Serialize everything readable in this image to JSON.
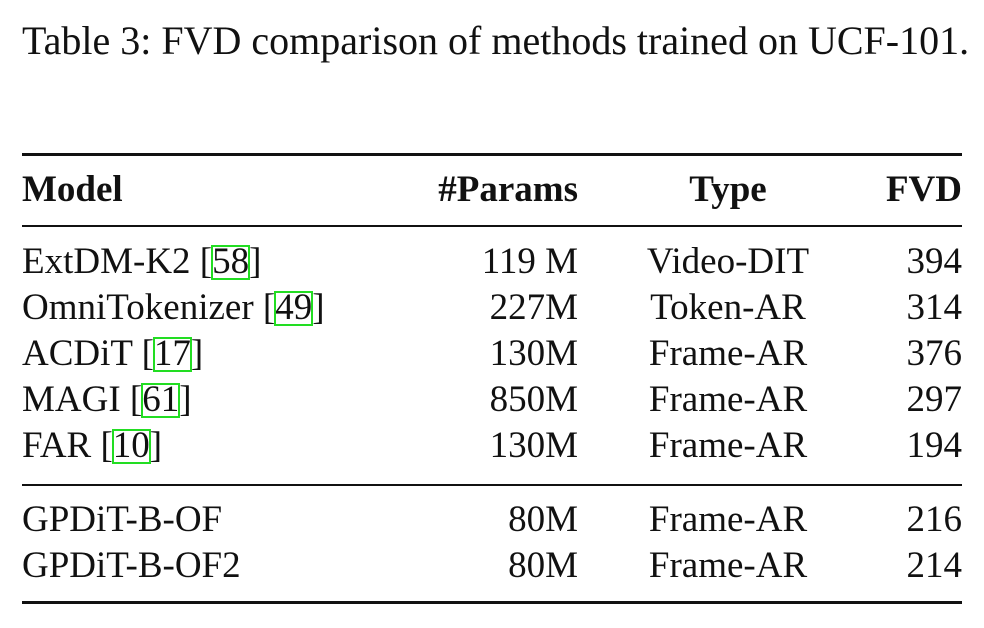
{
  "caption": "Table 3: FVD comparison of methods trained on UCF-101.",
  "table": {
    "header": [
      "Model",
      "#Params",
      "Type",
      "FVD"
    ],
    "groups": [
      [
        [
          "ExtDM-K2 [58]",
          "119 M",
          "Video-DIT",
          "394"
        ],
        [
          "OmniTokenizer [49]",
          "227M",
          "Token-AR",
          "314"
        ],
        [
          "ACDiT [17]",
          "130M",
          "Frame-AR",
          "376"
        ],
        [
          "MAGI [61]",
          "850M",
          "Frame-AR",
          "297"
        ],
        [
          "FAR [10]",
          "130M",
          "Frame-AR",
          "194"
        ]
      ],
      [
        [
          "GPDiT-B-OF",
          "80M",
          "Frame-AR",
          "216"
        ],
        [
          "GPDiT-B-OF2",
          "80M",
          "Frame-AR",
          "214"
        ]
      ]
    ]
  }
}
